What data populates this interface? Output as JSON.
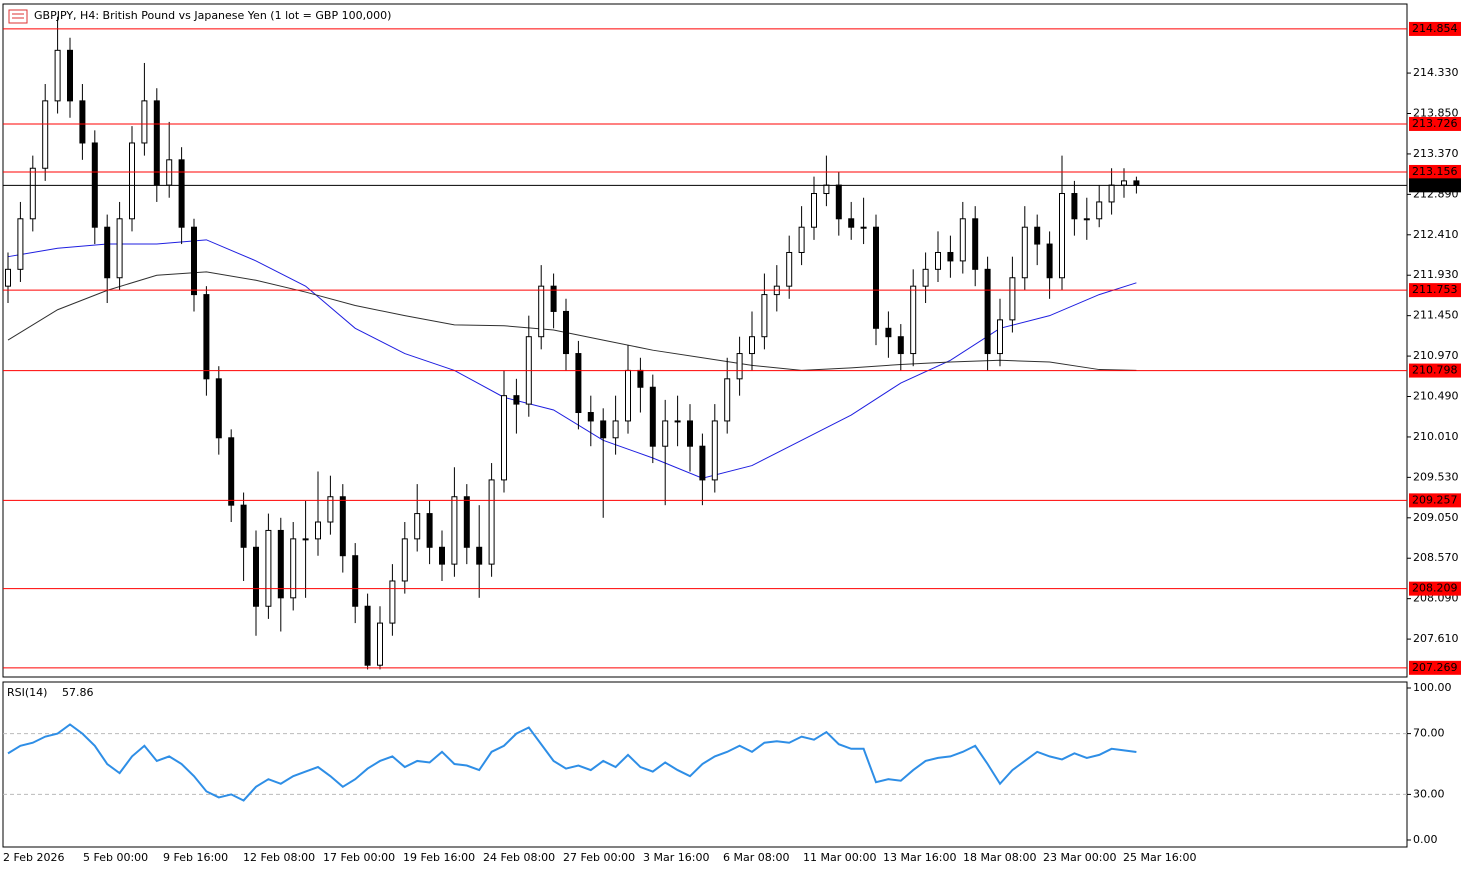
{
  "header": {
    "title": "GBPJPY, H4:  British Pound vs Japanese Yen (1 lot = GBP 100,000)"
  },
  "chart_data": [
    {
      "type": "candlestick",
      "open": [
        211.8,
        212.0,
        212.6,
        213.2,
        214.0,
        214.6,
        214.0,
        213.5,
        212.5,
        211.9,
        212.6,
        213.5,
        214.0,
        213.0,
        213.3,
        212.5,
        211.7,
        210.7,
        210.0,
        209.2,
        208.7,
        208.0,
        208.9,
        208.1,
        208.8,
        208.8,
        209.0,
        209.3,
        208.6,
        208.0,
        207.3,
        207.8,
        208.3,
        208.8,
        209.1,
        208.7,
        208.5,
        209.3,
        208.7,
        208.5,
        209.5,
        210.5,
        210.4,
        211.2,
        211.8,
        211.5,
        211.0,
        210.3,
        210.2,
        210.0,
        210.2,
        210.8,
        210.6,
        209.9,
        210.2,
        210.2,
        209.9,
        209.5,
        210.2,
        210.7,
        211.0,
        211.2,
        211.7,
        211.8,
        212.2,
        212.5,
        212.9,
        213.0,
        212.6,
        212.5,
        212.5,
        211.3,
        211.2,
        211.0,
        211.8,
        212.0,
        212.2,
        212.1,
        212.6,
        212.0,
        211.0,
        211.4,
        211.9,
        212.5,
        212.3,
        211.9,
        212.9,
        212.6,
        212.6,
        212.8,
        213.0,
        213.05
      ],
      "high": [
        212.2,
        212.8,
        213.35,
        214.2,
        215.0,
        214.75,
        214.2,
        213.65,
        212.65,
        212.8,
        213.7,
        214.45,
        214.15,
        213.75,
        213.45,
        212.6,
        211.8,
        210.85,
        210.1,
        209.35,
        208.9,
        209.1,
        209.05,
        209.0,
        209.25,
        209.6,
        209.55,
        209.45,
        208.75,
        208.15,
        208.0,
        208.5,
        209.0,
        209.45,
        209.25,
        208.9,
        209.65,
        209.45,
        209.2,
        209.7,
        210.8,
        210.7,
        211.45,
        212.05,
        211.95,
        211.65,
        211.15,
        210.5,
        210.35,
        210.5,
        211.1,
        210.95,
        210.75,
        210.45,
        210.5,
        210.4,
        210.05,
        210.4,
        210.95,
        211.2,
        211.5,
        211.95,
        212.05,
        212.4,
        212.75,
        213.1,
        213.35,
        213.15,
        212.8,
        212.85,
        212.65,
        211.5,
        211.35,
        212.0,
        212.2,
        212.45,
        212.4,
        212.8,
        212.75,
        212.15,
        211.65,
        212.15,
        212.75,
        212.65,
        212.45,
        213.35,
        213.05,
        212.85,
        213.0,
        213.2,
        213.2,
        213.1
      ],
      "low": [
        211.6,
        211.85,
        212.45,
        213.05,
        213.85,
        213.8,
        213.3,
        212.3,
        211.6,
        211.75,
        212.45,
        213.35,
        212.8,
        212.85,
        212.3,
        211.5,
        210.5,
        209.8,
        209.0,
        208.3,
        207.65,
        207.85,
        207.7,
        207.95,
        208.1,
        208.6,
        208.85,
        208.4,
        207.8,
        207.25,
        207.25,
        207.65,
        208.15,
        208.65,
        208.5,
        208.3,
        208.35,
        208.5,
        208.1,
        208.35,
        209.35,
        210.05,
        210.25,
        211.05,
        211.3,
        210.8,
        210.1,
        209.9,
        209.05,
        209.8,
        210.05,
        210.3,
        209.7,
        209.2,
        209.9,
        209.6,
        209.2,
        209.35,
        210.05,
        210.5,
        210.8,
        211.05,
        211.5,
        211.65,
        212.05,
        212.35,
        212.75,
        212.4,
        212.35,
        212.3,
        211.1,
        210.95,
        210.8,
        210.85,
        211.6,
        211.85,
        211.9,
        211.95,
        211.8,
        210.8,
        210.85,
        211.25,
        211.75,
        212.05,
        211.65,
        211.75,
        212.4,
        212.35,
        212.5,
        212.65,
        212.85,
        212.9
      ],
      "close": [
        212.0,
        212.6,
        213.2,
        214.0,
        214.6,
        214.0,
        213.5,
        212.5,
        211.9,
        212.6,
        213.5,
        214.0,
        213.0,
        213.3,
        212.5,
        211.7,
        210.7,
        210.0,
        209.2,
        208.7,
        208.0,
        208.9,
        208.1,
        208.8,
        208.8,
        209.0,
        209.3,
        208.6,
        208.0,
        207.3,
        207.8,
        208.3,
        208.8,
        209.1,
        208.7,
        208.5,
        209.3,
        208.7,
        208.5,
        209.5,
        210.5,
        210.4,
        211.2,
        211.8,
        211.5,
        211.0,
        210.3,
        210.2,
        210.0,
        210.2,
        210.8,
        210.6,
        209.9,
        210.2,
        210.2,
        209.9,
        209.5,
        210.2,
        210.7,
        211.0,
        211.2,
        211.7,
        211.8,
        212.2,
        212.5,
        212.9,
        213.0,
        212.6,
        212.5,
        212.5,
        211.3,
        211.2,
        211.0,
        211.8,
        212.0,
        212.2,
        212.1,
        212.6,
        212.0,
        211.0,
        211.4,
        211.9,
        212.5,
        212.3,
        211.9,
        212.9,
        212.6,
        212.6,
        212.8,
        213.0,
        213.05,
        212.997
      ],
      "up_color": "#ffffff",
      "down_color": "#000000",
      "ylim": [
        207.16,
        215.15
      ],
      "yticks": [
        {
          "value": 214.33,
          "label": "214.330"
        },
        {
          "value": 213.85,
          "label": "213.850"
        },
        {
          "value": 213.37,
          "label": "213.370"
        },
        {
          "value": 212.89,
          "label": "212.890"
        },
        {
          "value": 212.41,
          "label": "212.410"
        },
        {
          "value": 211.93,
          "label": "211.930"
        },
        {
          "value": 211.45,
          "label": "211.450"
        },
        {
          "value": 210.97,
          "label": "210.970"
        },
        {
          "value": 210.49,
          "label": "210.490"
        },
        {
          "value": 210.01,
          "label": "210.010"
        },
        {
          "value": 209.53,
          "label": "209.530"
        },
        {
          "value": 209.05,
          "label": "209.050"
        },
        {
          "value": 208.57,
          "label": "208.570"
        },
        {
          "value": 208.09,
          "label": "208.090"
        },
        {
          "value": 207.61,
          "label": "207.610"
        }
      ],
      "levels": [
        214.854,
        213.726,
        213.156,
        211.753,
        210.798,
        209.257,
        208.209,
        207.269
      ],
      "level_color": "#ff0000",
      "current_price": 212.997,
      "current_color": "#000000",
      "moving_averages": [
        {
          "color": "#1f1fe0",
          "x": [
            0,
            4,
            8,
            12,
            16,
            20,
            24,
            28,
            32,
            36,
            40,
            44,
            48,
            52,
            56,
            60,
            64,
            68,
            72,
            76,
            80,
            84,
            88,
            91
          ],
          "values": [
            212.15,
            212.25,
            212.3,
            212.3,
            212.35,
            212.1,
            211.8,
            211.3,
            211.0,
            210.8,
            210.48,
            210.33,
            209.97,
            209.76,
            209.52,
            209.67,
            209.97,
            210.27,
            210.65,
            210.92,
            211.3,
            211.45,
            211.7,
            211.84
          ]
        },
        {
          "color": "#303030",
          "x": [
            0,
            4,
            8,
            12,
            16,
            20,
            24,
            28,
            32,
            36,
            40,
            44,
            48,
            52,
            56,
            60,
            64,
            68,
            72,
            76,
            80,
            84,
            88,
            91
          ],
          "values": [
            211.16,
            211.52,
            211.75,
            211.93,
            211.97,
            211.87,
            211.73,
            211.57,
            211.45,
            211.34,
            211.33,
            211.28,
            211.16,
            211.04,
            210.95,
            210.86,
            210.8,
            210.83,
            210.87,
            210.9,
            210.92,
            210.9,
            210.81,
            210.8
          ]
        }
      ],
      "time_labels": [
        "2 Feb 2026",
        "5 Feb 00:00",
        "9 Feb 16:00",
        "12 Feb 08:00",
        "17 Feb 00:00",
        "19 Feb 16:00",
        "24 Feb 08:00",
        "27 Feb 00:00",
        "3 Mar 16:00",
        "6 Mar 08:00",
        "11 Mar 00:00",
        "13 Mar 16:00",
        "18 Mar 08:00",
        "23 Mar 00:00",
        "25 Mar 16:00"
      ]
    },
    {
      "type": "line",
      "name": "RSI(14)",
      "color": "#2e8ee6",
      "values": [
        57,
        62,
        64,
        68,
        70,
        76,
        70,
        62,
        50,
        44,
        55,
        62,
        52,
        55,
        50,
        42,
        32,
        28,
        30,
        26,
        35,
        40,
        37,
        42,
        45,
        48,
        42,
        35,
        40,
        47,
        52,
        55,
        48,
        52,
        51,
        58,
        50,
        49,
        46,
        58,
        62,
        70,
        74,
        63,
        52,
        47,
        49,
        46,
        52,
        48,
        56,
        48,
        45,
        51,
        46,
        42,
        50,
        55,
        58,
        62,
        58,
        64,
        65,
        64,
        68,
        66,
        71,
        63,
        60,
        60,
        38,
        40,
        39,
        46,
        52,
        54,
        55,
        58,
        62,
        50,
        37,
        46,
        52,
        58,
        55,
        53,
        57,
        54,
        56,
        60,
        59,
        57.86
      ],
      "ylim": [
        0,
        100
      ],
      "yticks": [
        {
          "value": 100,
          "label": "100.00"
        },
        {
          "value": 70,
          "label": "70.00"
        },
        {
          "value": 30,
          "label": "30.00"
        },
        {
          "value": 0,
          "label": "0.00"
        }
      ],
      "levels": [
        70,
        30
      ]
    }
  ]
}
